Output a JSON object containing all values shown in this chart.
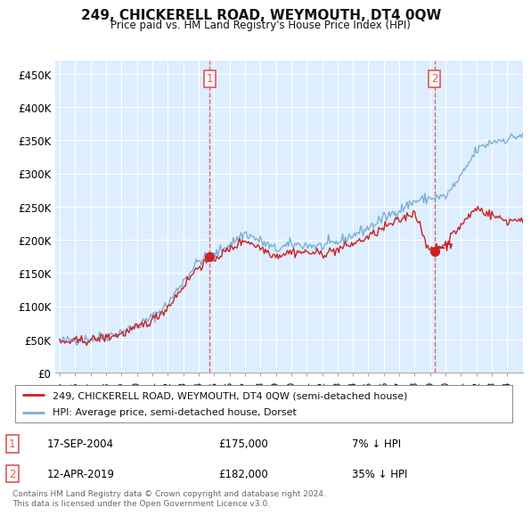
{
  "title": "249, CHICKERELL ROAD, WEYMOUTH, DT4 0QW",
  "subtitle": "Price paid vs. HM Land Registry's House Price Index (HPI)",
  "ylabel_ticks": [
    "£0",
    "£50K",
    "£100K",
    "£150K",
    "£200K",
    "£250K",
    "£300K",
    "£350K",
    "£400K",
    "£450K"
  ],
  "ytick_values": [
    0,
    50000,
    100000,
    150000,
    200000,
    250000,
    300000,
    350000,
    400000,
    450000
  ],
  "ylim": [
    0,
    470000
  ],
  "legend_line1": "249, CHICKERELL ROAD, WEYMOUTH, DT4 0QW (semi-detached house)",
  "legend_line2": "HPI: Average price, semi-detached house, Dorset",
  "marker1_date": "17-SEP-2004",
  "marker1_price": "£175,000",
  "marker1_hpi": "7% ↓ HPI",
  "marker2_date": "12-APR-2019",
  "marker2_price": "£182,000",
  "marker2_hpi": "35% ↓ HPI",
  "footer": "Contains HM Land Registry data © Crown copyright and database right 2024.\nThis data is licensed under the Open Government Licence v3.0.",
  "hpi_color": "#7bafd4",
  "price_color": "#cc2222",
  "vline_color": "#e05555",
  "chart_bg_color": "#ddeeff",
  "background_color": "#ffffff",
  "vline1_x": 2004.72,
  "vline2_x": 2019.28,
  "marker1_x": 2004.72,
  "marker1_y": 175000,
  "marker2_x": 2019.28,
  "marker2_y": 182000,
  "xlim_left": 1994.7,
  "xlim_right": 2025.0
}
